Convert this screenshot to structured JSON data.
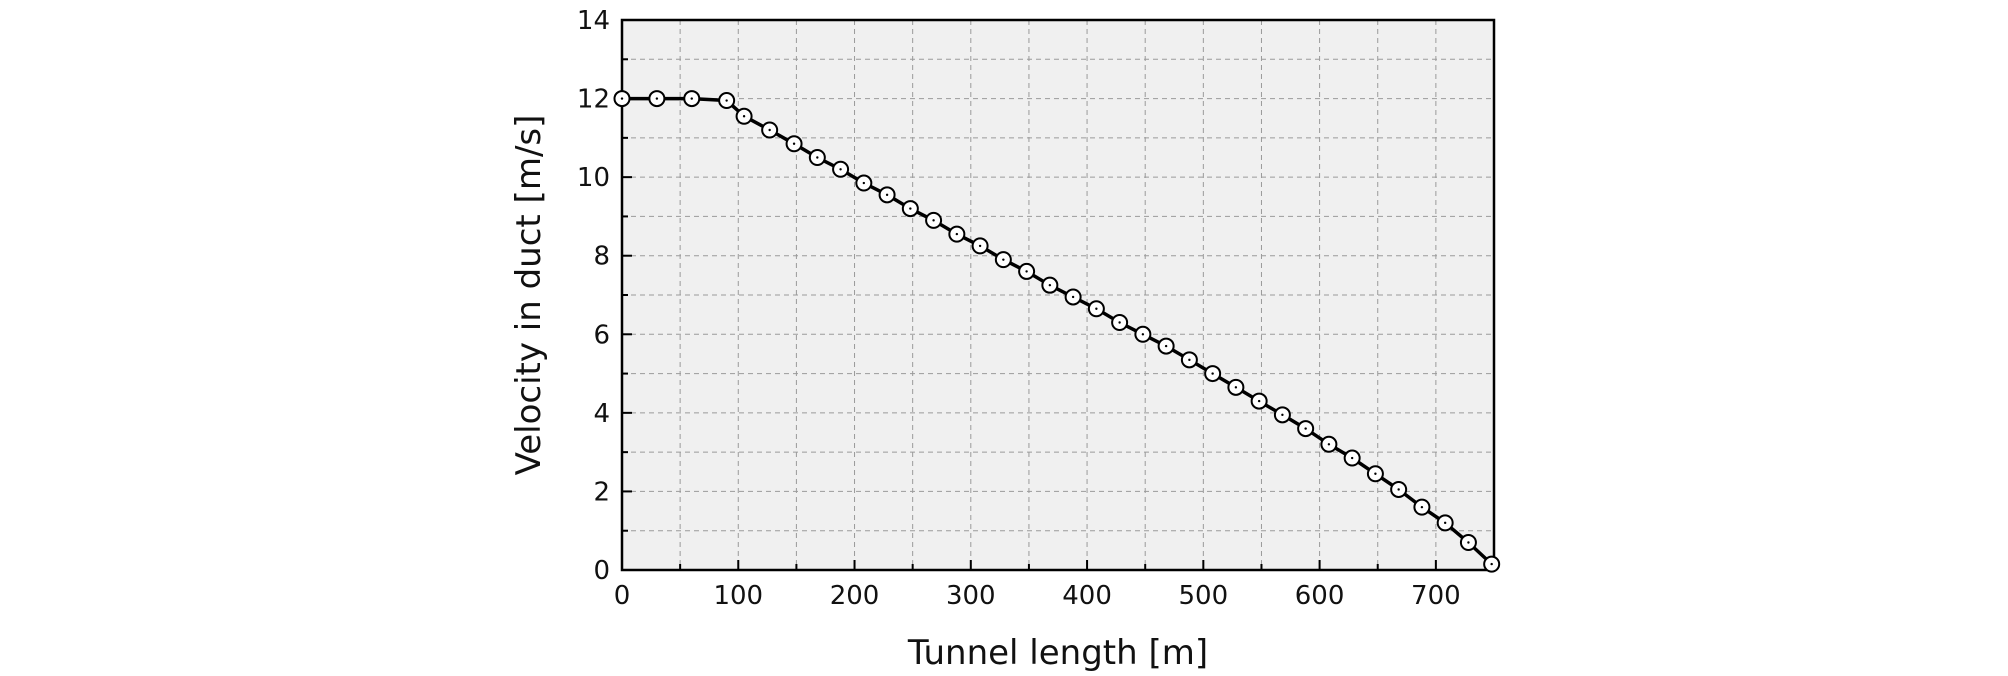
{
  "chart_data": {
    "type": "line",
    "xlabel": "Tunnel length [m]",
    "ylabel": "Velocity in duct [m/s]",
    "xlim": [
      0,
      750
    ],
    "ylim": [
      0,
      14
    ],
    "xticks": [
      0,
      100,
      200,
      300,
      400,
      500,
      600,
      700
    ],
    "yticks": [
      0,
      2,
      4,
      6,
      8,
      10,
      12,
      14
    ],
    "grid": true,
    "marker": "open-circle",
    "series": [
      {
        "x": [
          0,
          30,
          60,
          90,
          105,
          127,
          148,
          168,
          188,
          208,
          228,
          248,
          268,
          288,
          308,
          328,
          348,
          368,
          388,
          408,
          428,
          448,
          468,
          488,
          508,
          528,
          548,
          568,
          588,
          608,
          628,
          648,
          668,
          688,
          708,
          728,
          748
        ],
        "values": [
          12.0,
          12.0,
          12.0,
          11.95,
          11.55,
          11.2,
          10.85,
          10.5,
          10.2,
          9.85,
          9.55,
          9.2,
          8.9,
          8.55,
          8.25,
          7.9,
          7.6,
          7.25,
          6.95,
          6.65,
          6.3,
          6.0,
          5.7,
          5.35,
          5.0,
          4.65,
          4.3,
          3.95,
          3.6,
          3.2,
          2.85,
          2.45,
          2.05,
          1.6,
          1.2,
          0.7,
          0.15
        ]
      }
    ]
  },
  "colors": {
    "plot_background": "#f0f0f0",
    "grid": "#9a9a9a",
    "line": "#000000",
    "marker_fill": "#ffffff"
  }
}
